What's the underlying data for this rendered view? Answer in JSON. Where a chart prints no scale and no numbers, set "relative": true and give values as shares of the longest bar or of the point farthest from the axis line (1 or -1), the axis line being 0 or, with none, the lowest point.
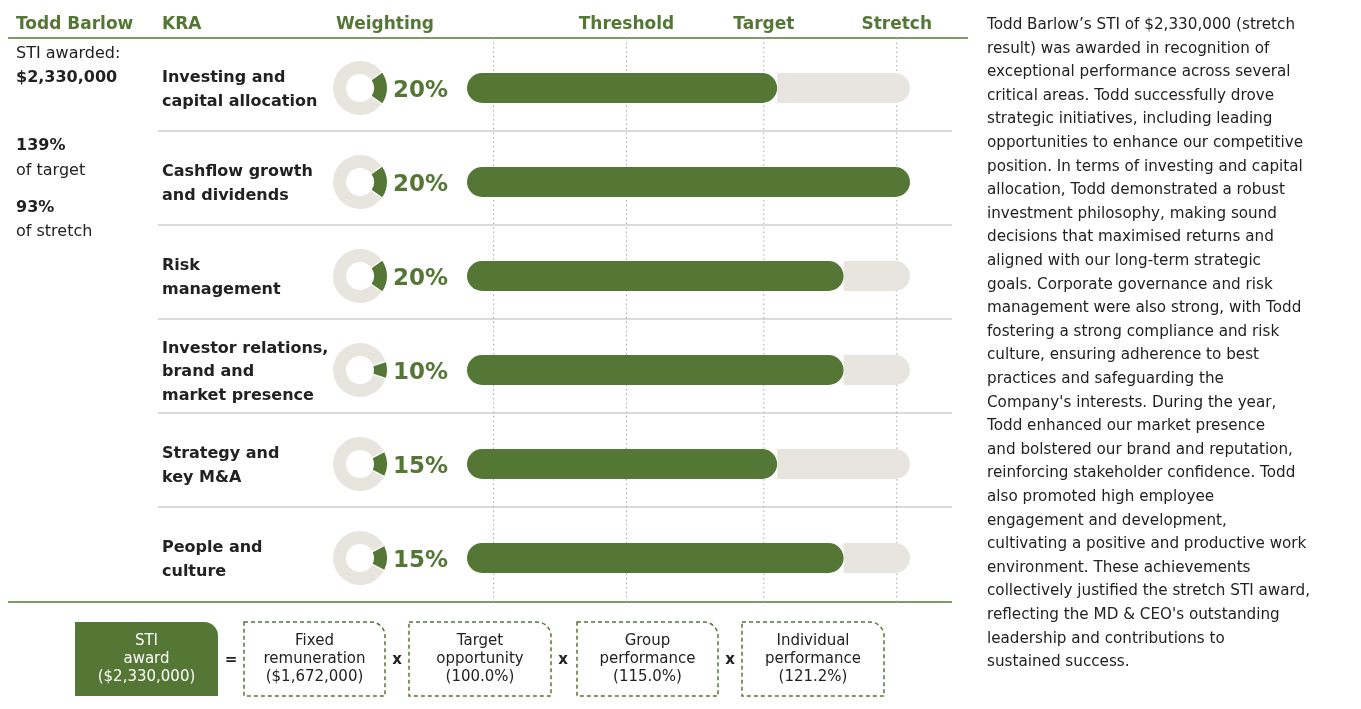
{
  "chart_data": [
    {
      "type": "bar",
      "orientation": "horizontal",
      "stacked": true,
      "title": "Todd Barlow",
      "ylabel": "KRA",
      "categories": [
        "Investing and\ncapital allocation",
        "Cashflow growth\nand dividends",
        "Risk\nmanagement",
        "Investor relations,\nbrand and\nmarket presence",
        "Strategy and\nkey M&A",
        "People and\nculture"
      ],
      "series": [
        {
          "color": "#547735",
          "values": [
            0.7,
            1,
            0.85,
            0.85,
            0.7,
            0.85
          ]
        },
        {
          "color": "#e8e5de",
          "values": [
            0.3,
            0,
            0.15,
            0.15,
            0.3,
            0.15
          ]
        }
      ],
      "relative": true,
      "ref_lines": [
        {
          "axis": "x",
          "value": 0.06,
          "label": null,
          "line_style": "dotted"
        },
        {
          "axis": "x",
          "value": 0.36,
          "label": "Threshold",
          "line_style": "dotted"
        },
        {
          "axis": "x",
          "value": 0.67,
          "label": "Target",
          "line_style": "dotted"
        },
        {
          "axis": "x",
          "value": 0.97,
          "label": "Stretch",
          "line_style": "dotted"
        }
      ],
      "annotations": [
        "Weighting",
        "STI awarded:",
        "$2,330,000",
        "139%",
        "of target",
        "93%",
        "of stretch",
        "Todd Barlow’s STI of $2,330,000 (stretch\nresult) was awarded in recognition of\nexceptional performance across several\ncritical areas. Todd successfully drove\nstrategic initiatives, including leading\nopportunities to enhance our competitive\nposition. In terms of investing and capital\nallocation, Todd demonstrated a robust\ninvestment philosophy, making sound\ndecisions that maximised returns and\naligned with our long-term strategic\ngoals. Corporate governance and risk\nmanagement were also strong, with Todd\nfostering a strong compliance and risk\nculture, ensuring adherence to best\npractices and safeguarding the\nCompany's interests. During the year,\nTodd enhanced our market presence\nand bolstered our brand and reputation,\nreinforcing stakeholder confidence. Todd\nalso promoted high employee\nengagement and development,\ncultivating a positive and productive work\nenvironment. These achievements\ncollectively justified the stretch STI award,\nreflecting the MD & CEO's outstanding\nleadership and contributions to\nsustained success.",
        "STI\naward\n($2,330,000)",
        "=",
        "Fixed\nremuneration\n($1,672,000)",
        "x",
        "Target\nopportunity\n(100.0%)",
        "x",
        "Group\nperformance\n(115.0%)",
        "x",
        "Individual\nperformance\n(121.2%)"
      ]
    },
    {
      "type": "donut",
      "categories": [
        null,
        null
      ],
      "values": [
        20,
        80
      ],
      "colors": [
        "#547735",
        "#e8e5de"
      ],
      "value_labels": [
        "20%",
        null
      ]
    },
    {
      "type": "donut",
      "categories": [
        null,
        null
      ],
      "values": [
        20,
        80
      ],
      "colors": [
        "#547735",
        "#e8e5de"
      ],
      "value_labels": [
        "20%",
        null
      ]
    },
    {
      "type": "donut",
      "categories": [
        null,
        null
      ],
      "values": [
        20,
        80
      ],
      "colors": [
        "#547735",
        "#e8e5de"
      ],
      "value_labels": [
        "20%",
        null
      ]
    },
    {
      "type": "donut",
      "categories": [
        null,
        null
      ],
      "values": [
        10,
        90
      ],
      "colors": [
        "#547735",
        "#e8e5de"
      ],
      "value_labels": [
        "10%",
        null
      ]
    },
    {
      "type": "donut",
      "categories": [
        null,
        null
      ],
      "values": [
        15,
        85
      ],
      "colors": [
        "#547735",
        "#e8e5de"
      ],
      "value_labels": [
        "15%",
        null
      ]
    },
    {
      "type": "donut",
      "categories": [
        null,
        null
      ],
      "values": [
        15,
        85
      ],
      "colors": [
        "#547735",
        "#e8e5de"
      ],
      "value_labels": [
        "15%",
        null
      ]
    }
  ]
}
